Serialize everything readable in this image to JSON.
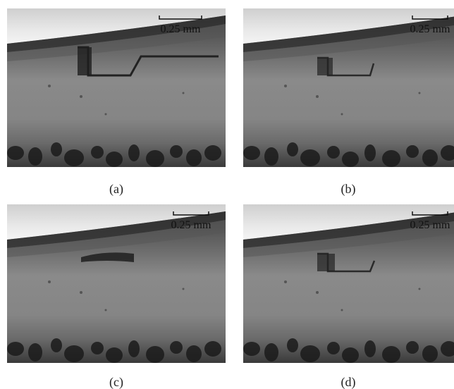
{
  "figure": {
    "panels": [
      {
        "label": "(a)",
        "scale_bar": "0.25 mm"
      },
      {
        "label": "(b)",
        "scale_bar": "0.25 mm"
      },
      {
        "label": "(c)",
        "scale_bar": "0.25 mm"
      },
      {
        "label": "(d)",
        "scale_bar": "0.25 mm"
      }
    ]
  }
}
